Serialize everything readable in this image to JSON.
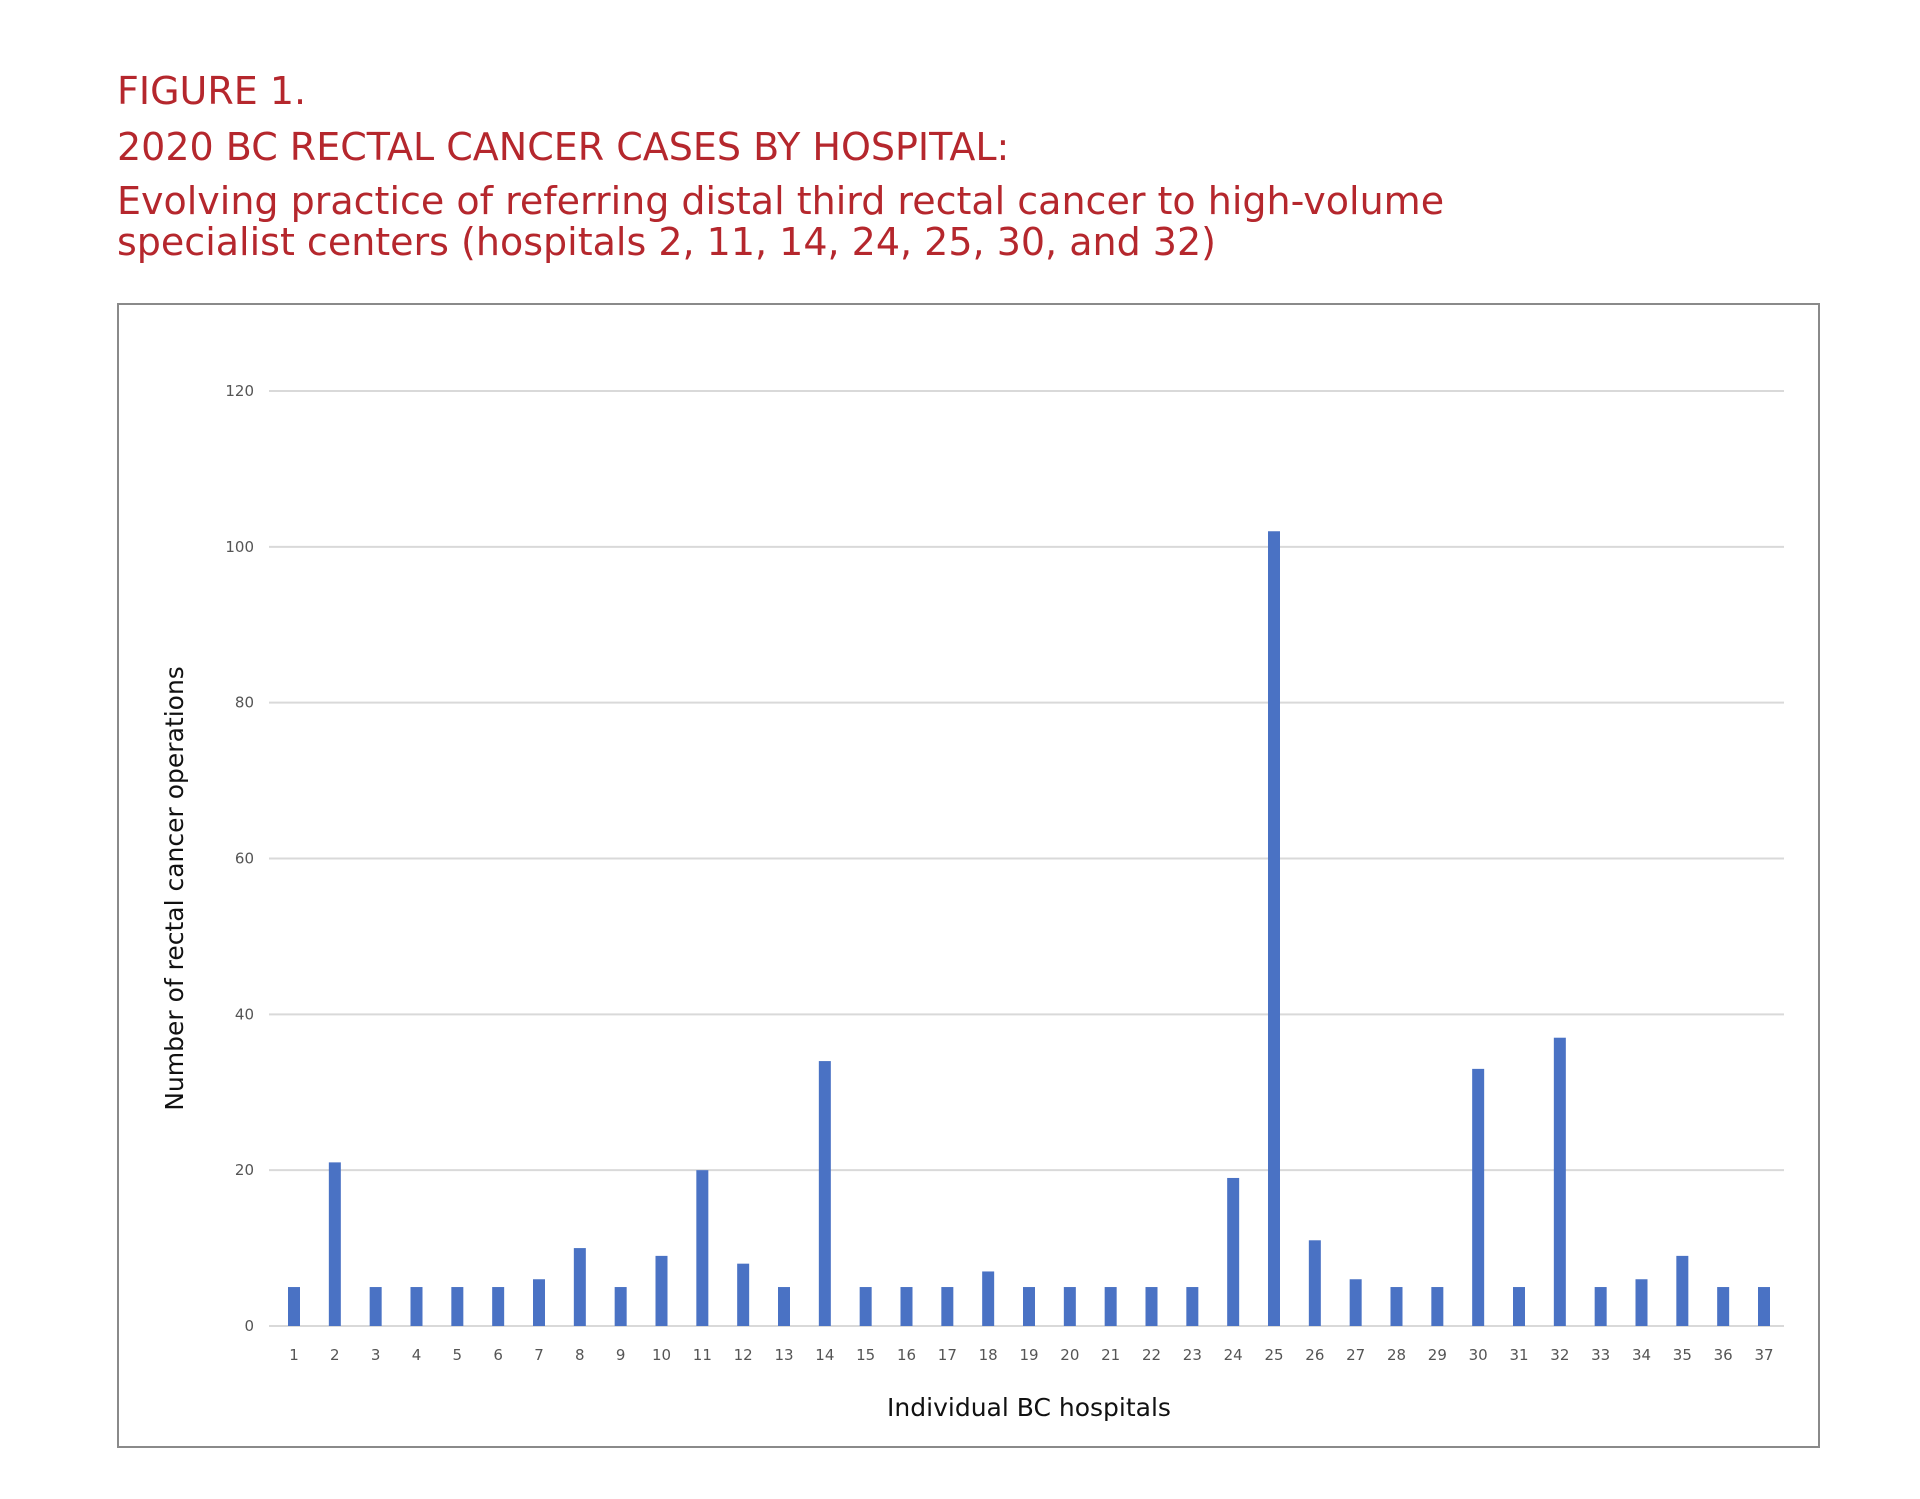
{
  "figure": {
    "label": "FIGURE 1.",
    "title": "2020 BC RECTAL CANCER CASES BY HOSPITAL:",
    "subtitle_line1": "Evolving practice of referring distal third rectal cancer to high-volume",
    "subtitle_line2": "specialist centers (hospitals 2, 11, 14, 24, 25, 30, and 32)",
    "title_color": "#b5272d"
  },
  "chart_data": {
    "type": "bar",
    "xlabel": "Individual BC hospitals",
    "ylabel": "Number of rectal cancer operations",
    "ylim": [
      0,
      120
    ],
    "yticks": [
      0,
      20,
      40,
      60,
      80,
      100,
      120
    ],
    "grid": true,
    "bar_color": "#4a72c4",
    "categories": [
      "1",
      "2",
      "3",
      "4",
      "5",
      "6",
      "7",
      "8",
      "9",
      "10",
      "11",
      "12",
      "13",
      "14",
      "15",
      "16",
      "17",
      "18",
      "19",
      "20",
      "21",
      "22",
      "23",
      "24",
      "25",
      "26",
      "27",
      "28",
      "29",
      "30",
      "31",
      "32",
      "33",
      "34",
      "35",
      "36",
      "37"
    ],
    "values": [
      5,
      21,
      5,
      5,
      5,
      5,
      6,
      10,
      5,
      9,
      20,
      8,
      5,
      34,
      5,
      5,
      5,
      7,
      5,
      5,
      5,
      5,
      5,
      19,
      102,
      11,
      6,
      5,
      5,
      33,
      5,
      37,
      5,
      6,
      9,
      5,
      5
    ]
  }
}
